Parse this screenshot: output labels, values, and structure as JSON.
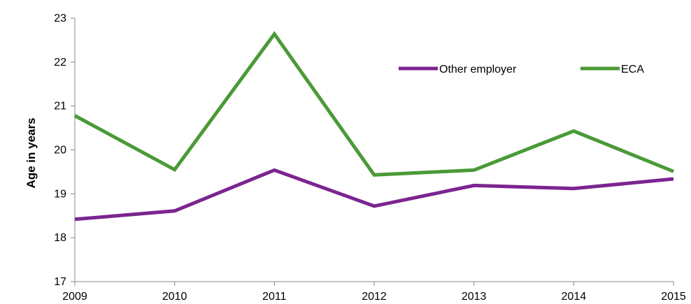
{
  "chart_data": {
    "type": "line",
    "title": "",
    "xlabel": "",
    "ylabel": "Age in years",
    "categories": [
      "2009",
      "2010",
      "2011",
      "2012",
      "2013",
      "2014",
      "2015"
    ],
    "ylim": [
      17,
      23
    ],
    "yticks": [
      17,
      18,
      19,
      20,
      21,
      22,
      23
    ],
    "grid": false,
    "legend": "top-right, inside plot",
    "series": [
      {
        "name": "Other employer",
        "color": "#7b2590",
        "values": [
          18.42,
          18.61,
          19.54,
          18.72,
          19.19,
          19.12,
          19.34
        ]
      },
      {
        "name": "ECA",
        "color": "#4a9a37",
        "values": [
          20.78,
          19.55,
          22.64,
          19.43,
          19.54,
          20.43,
          19.51
        ]
      }
    ]
  }
}
